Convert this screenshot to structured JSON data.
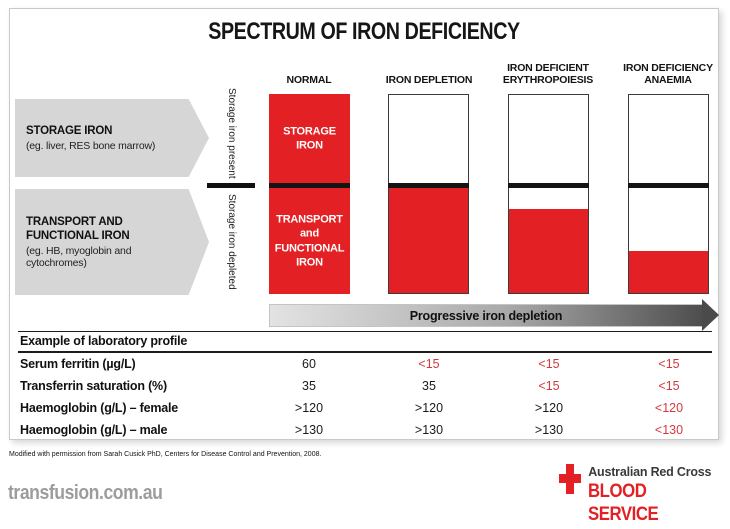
{
  "title": "SPECTRUM OF IRON DEFICIENCY",
  "colors": {
    "bar_red": "#e32023",
    "abnormal_value_red": "#d43a3f",
    "legend_box_gray": "#d6d6d6",
    "divider_black": "#141414",
    "website_gray": "#9c9c9c"
  },
  "columns": [
    {
      "label": "NORMAL"
    },
    {
      "label": "IRON DEPLETION"
    },
    {
      "label": "IRON DEFICIENT ERYTHROPOIESIS"
    },
    {
      "label": "IRON DEFICIENCY ANAEMIA"
    }
  ],
  "left_panel": {
    "storage_box": {
      "title": "STORAGE IRON",
      "subtitle": "(eg. liver, RES bone marrow)"
    },
    "transport_box": {
      "title": "TRANSPORT AND\nFUNCTIONAL IRON",
      "subtitle": "(eg. HB, myoglobin and cytochromes)"
    },
    "axis_top": "Storage iron present",
    "axis_bottom": "Storage iron depleted"
  },
  "bars": {
    "normal_top_label": "STORAGE\nIRON",
    "normal_bottom_label": "TRANSPORT\nand\nFUNCTIONAL\nIRON",
    "fills": {
      "storage": [
        100,
        0,
        0,
        0
      ],
      "transport": [
        100,
        100,
        80,
        40
      ]
    }
  },
  "depletion_arrow_label": "Progressive iron depletion",
  "table": {
    "header": "Example of laboratory profile",
    "rows": [
      {
        "label": "Serum ferritin (µg/L)",
        "values": [
          "60",
          "<15",
          "<15",
          "<15"
        ],
        "abnormal": [
          false,
          true,
          true,
          true
        ]
      },
      {
        "label": "Transferrin saturation (%)",
        "values": [
          "35",
          "35",
          "<15",
          "<15"
        ],
        "abnormal": [
          false,
          false,
          true,
          true
        ]
      },
      {
        "label": "Haemoglobin (g/L) – female",
        "values": [
          ">120",
          ">120",
          ">120",
          "<120"
        ],
        "abnormal": [
          false,
          false,
          false,
          true
        ]
      },
      {
        "label": "Haemoglobin (g/L) – male",
        "values": [
          ">130",
          ">130",
          ">130",
          "<130"
        ],
        "abnormal": [
          false,
          false,
          false,
          true
        ]
      }
    ]
  },
  "footnote": "Modified with permission from Sarah Cusick PhD, Centers for Disease Control and Prevention, 2008.",
  "website": "transfusion.com.au",
  "logo": {
    "org": "Australian Red Cross",
    "service": "BLOOD SERVICE"
  },
  "chart_data": {
    "type": "bar",
    "categories": [
      "NORMAL",
      "IRON DEPLETION",
      "IRON DEFICIENT ERYTHROPOIESIS",
      "IRON DEFICIENCY ANAEMIA"
    ],
    "series": [
      {
        "name": "Storage iron (percent of compartment filled)",
        "values": [
          100,
          0,
          0,
          0
        ]
      },
      {
        "name": "Transport and functional iron (percent of compartment filled)",
        "values": [
          100,
          100,
          80,
          40
        ]
      }
    ],
    "title": "SPECTRUM OF IRON DEFICIENCY",
    "annotation": "Progressive iron depletion",
    "legend_position": "left",
    "grid": false,
    "table": {
      "header": "Example of laboratory profile",
      "rows": [
        {
          "label": "Serum ferritin (µg/L)",
          "values": [
            "60",
            "<15",
            "<15",
            "<15"
          ]
        },
        {
          "label": "Transferrin saturation (%)",
          "values": [
            "35",
            "35",
            "<15",
            "<15"
          ]
        },
        {
          "label": "Haemoglobin (g/L) – female",
          "values": [
            ">120",
            ">120",
            ">120",
            "<120"
          ]
        },
        {
          "label": "Haemoglobin (g/L) – male",
          "values": [
            ">130",
            ">130",
            ">130",
            "<130"
          ]
        }
      ]
    }
  }
}
